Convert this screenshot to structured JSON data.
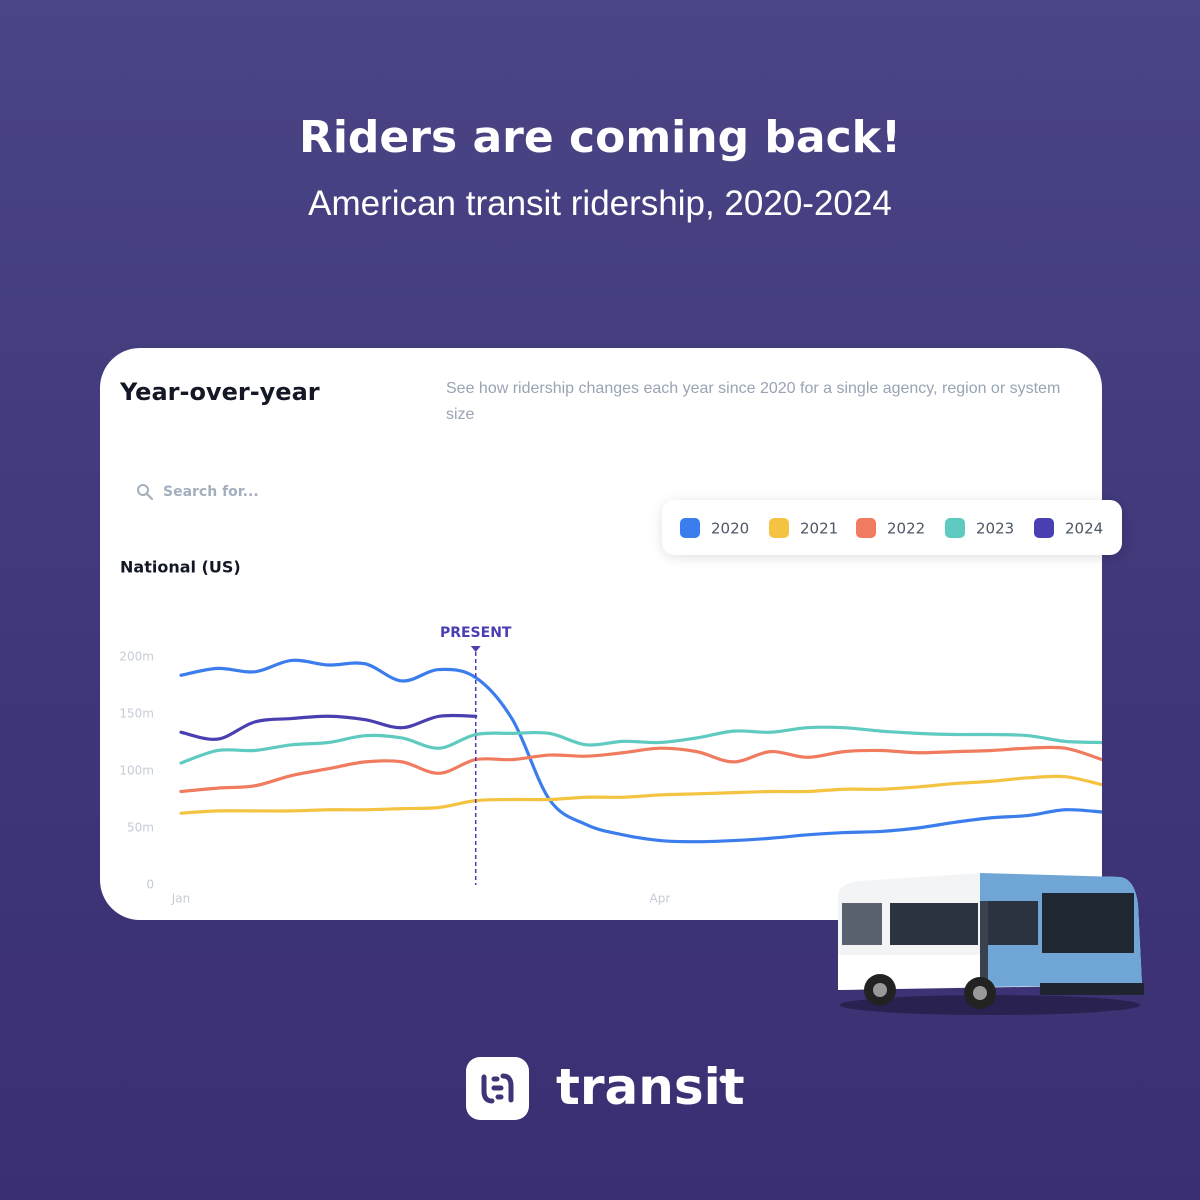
{
  "title": "Riders are coming back!",
  "subtitle": "American transit ridership, 2020-2024",
  "card": {
    "title": "Year-over-year",
    "description": "See how ridership changes each year since 2020 for a single agency, region or system size",
    "search_placeholder": "Search for..."
  },
  "brand": "transit",
  "chart_data": {
    "type": "line",
    "title": "National (US)",
    "x": [
      0,
      1,
      2,
      3,
      4,
      5,
      6,
      7,
      8,
      9,
      10,
      11,
      12,
      13,
      14,
      15,
      16,
      17,
      18,
      19,
      20,
      21,
      22,
      23,
      24,
      25
    ],
    "xlim": [
      0,
      25
    ],
    "xticks": [
      {
        "value": 0,
        "label": "Jan"
      },
      {
        "value": 13,
        "label": "Apr"
      }
    ],
    "ylim": [
      0,
      200
    ],
    "yticks": [
      0,
      {
        "value": 50,
        "label": "50m"
      },
      {
        "value": 100,
        "label": "100m"
      },
      {
        "value": 150,
        "label": "150m"
      },
      {
        "value": 200,
        "label": "200m"
      }
    ],
    "grid": false,
    "annotations": [
      {
        "text": "PRESENT",
        "x": 8
      }
    ],
    "series": [
      {
        "name": "2020",
        "color": "#3b7ded",
        "values": [
          184,
          190,
          187,
          197,
          193,
          194,
          179,
          189,
          182,
          145,
          75,
          53,
          44,
          39,
          38,
          39,
          41,
          44,
          46,
          47,
          50,
          55,
          59,
          61,
          66,
          64
        ]
      },
      {
        "name": "2021",
        "color": "#f5c342",
        "values": [
          63,
          65,
          65,
          65,
          66,
          66,
          67,
          68,
          74,
          75,
          75,
          77,
          77,
          79,
          80,
          81,
          82,
          82,
          84,
          84,
          86,
          89,
          91,
          94,
          95,
          88
        ]
      },
      {
        "name": "2022",
        "color": "#f07b5f",
        "values": [
          82,
          85,
          87,
          96,
          102,
          108,
          108,
          98,
          110,
          110,
          114,
          113,
          116,
          120,
          117,
          108,
          117,
          112,
          117,
          118,
          116,
          117,
          118,
          120,
          120,
          110
        ]
      },
      {
        "name": "2023",
        "color": "#5fcac0",
        "values": [
          107,
          118,
          118,
          123,
          125,
          131,
          129,
          120,
          132,
          133,
          133,
          123,
          126,
          125,
          129,
          135,
          134,
          138,
          138,
          135,
          133,
          132,
          132,
          131,
          126,
          125
        ]
      },
      {
        "name": "2024",
        "color": "#4a3fb0",
        "values": [
          134,
          128,
          143,
          146,
          148,
          145,
          138,
          148,
          148,
          null,
          null,
          null,
          null,
          null,
          null,
          null,
          null,
          null,
          null,
          null,
          null,
          null,
          null,
          null,
          null,
          null
        ]
      }
    ]
  }
}
